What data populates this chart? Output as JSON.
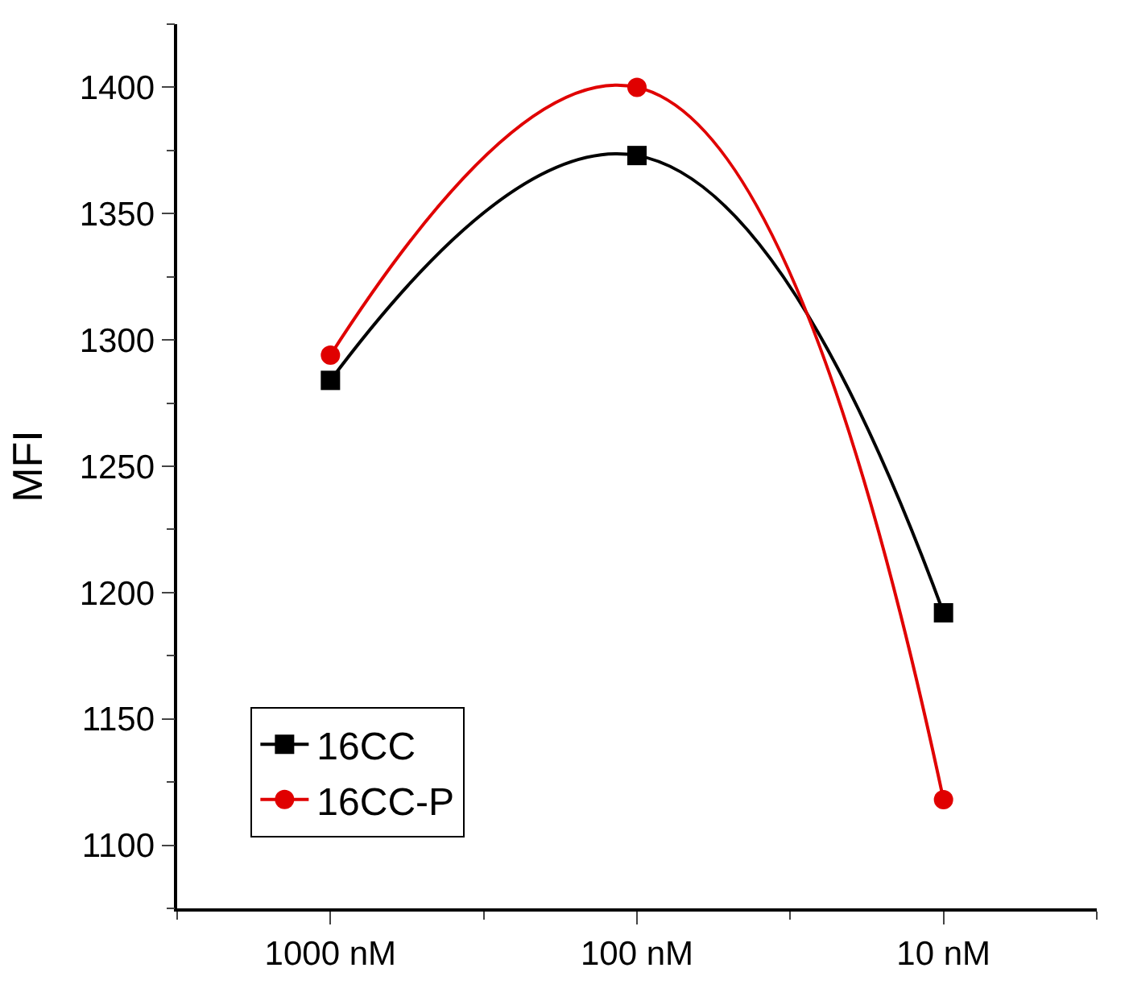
{
  "chart_data": {
    "type": "line",
    "ylabel": "MFI",
    "categories": [
      "1000 nM",
      "100 nM",
      "10 nM"
    ],
    "series": [
      {
        "name": "16CC",
        "color": "#000000",
        "marker": "square",
        "values": [
          1284,
          1373,
          1192
        ]
      },
      {
        "name": "16CC-P",
        "color": "#e00000",
        "marker": "circle",
        "values": [
          1294,
          1400,
          1118
        ]
      }
    ],
    "ylim": [
      1075,
      1425
    ],
    "yticks": [
      1100,
      1150,
      1200,
      1250,
      1300,
      1350,
      1400
    ],
    "legend": "bottom left"
  }
}
